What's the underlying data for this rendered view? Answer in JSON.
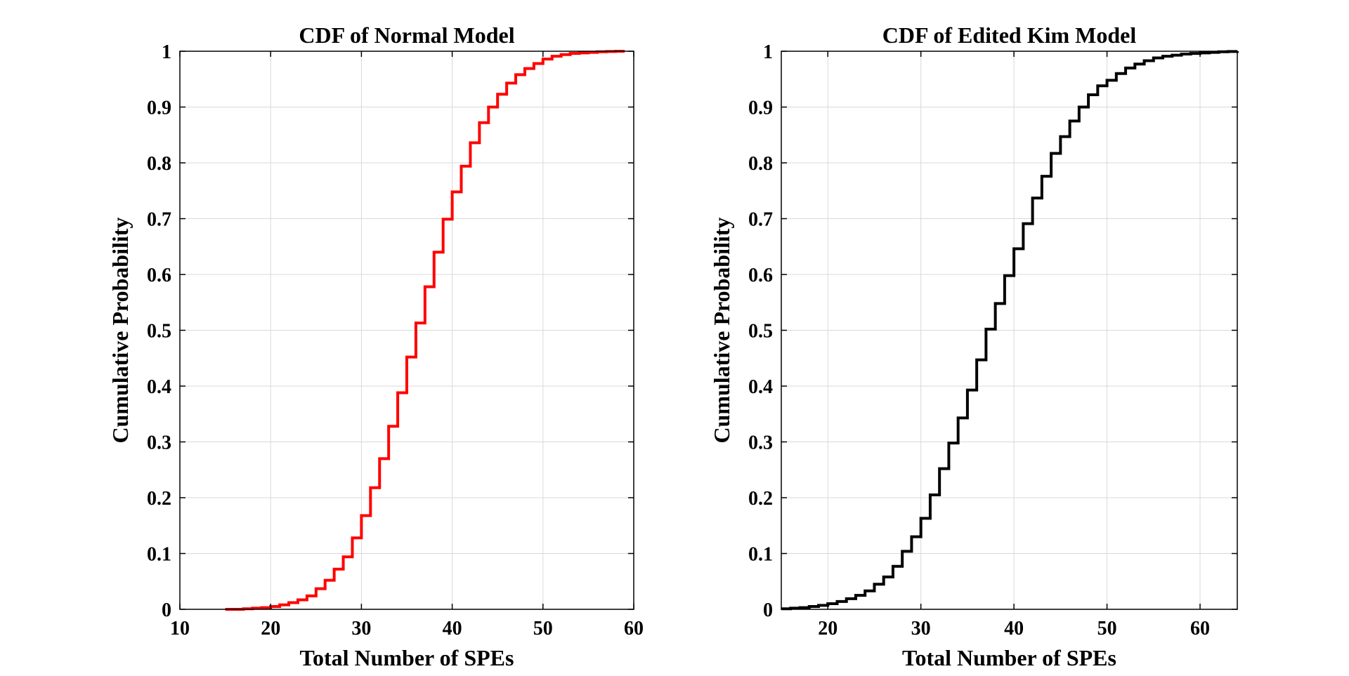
{
  "chart_data": [
    {
      "type": "line",
      "title": "CDF of Normal Model",
      "xlabel": "Total Number of SPEs",
      "ylabel": "Cumulative Probability",
      "xlim": [
        10,
        60
      ],
      "ylim": [
        0,
        1
      ],
      "xticks": [
        "10",
        "20",
        "30",
        "40",
        "50",
        "60"
      ],
      "yticks": [
        "0",
        "0.1",
        "0.2",
        "0.3",
        "0.4",
        "0.5",
        "0.6",
        "0.7",
        "0.8",
        "0.9",
        "1"
      ],
      "grid": true,
      "color": "#ff0000",
      "style": "stairs",
      "series": [
        {
          "x": [
            15,
            16,
            17,
            18,
            19,
            20,
            21,
            22,
            23,
            24,
            25,
            26,
            27,
            28,
            29,
            30,
            31,
            32,
            33,
            34,
            35,
            36,
            37,
            38,
            39,
            40,
            41,
            42,
            43,
            44,
            45,
            46,
            47,
            48,
            49,
            50,
            51,
            52,
            53,
            54,
            55,
            56,
            57,
            58,
            59
          ],
          "values": [
            0,
            0,
            0.001,
            0.002,
            0.003,
            0.005,
            0.008,
            0.012,
            0.017,
            0.024,
            0.037,
            0.052,
            0.072,
            0.094,
            0.128,
            0.168,
            0.218,
            0.27,
            0.328,
            0.388,
            0.452,
            0.513,
            0.578,
            0.64,
            0.699,
            0.748,
            0.794,
            0.836,
            0.872,
            0.9,
            0.923,
            0.943,
            0.958,
            0.969,
            0.978,
            0.986,
            0.991,
            0.994,
            0.996,
            0.997,
            0.998,
            0.999,
            0.9995,
            1,
            1
          ]
        }
      ]
    },
    {
      "type": "line",
      "title": "CDF of Edited Kim Model",
      "xlabel": "Total Number of SPEs",
      "ylabel": "Cumulative Probability",
      "xlim": [
        15,
        64
      ],
      "ylim": [
        0,
        1
      ],
      "xticks": [
        "20",
        "30",
        "40",
        "50",
        "60"
      ],
      "yticks": [
        "0",
        "0.1",
        "0.2",
        "0.3",
        "0.4",
        "0.5",
        "0.6",
        "0.7",
        "0.8",
        "0.9",
        "1"
      ],
      "grid": true,
      "color": "#000000",
      "style": "stairs",
      "series": [
        {
          "x": [
            15,
            16,
            17,
            18,
            19,
            20,
            21,
            22,
            23,
            24,
            25,
            26,
            27,
            28,
            29,
            30,
            31,
            32,
            33,
            34,
            35,
            36,
            37,
            38,
            39,
            40,
            41,
            42,
            43,
            44,
            45,
            46,
            47,
            48,
            49,
            50,
            51,
            52,
            53,
            54,
            55,
            56,
            57,
            58,
            59,
            60,
            61,
            62,
            63,
            64
          ],
          "values": [
            0.001,
            0.002,
            0.003,
            0.005,
            0.007,
            0.01,
            0.014,
            0.019,
            0.025,
            0.033,
            0.045,
            0.058,
            0.077,
            0.104,
            0.13,
            0.163,
            0.205,
            0.252,
            0.298,
            0.343,
            0.393,
            0.447,
            0.502,
            0.548,
            0.598,
            0.646,
            0.691,
            0.737,
            0.776,
            0.817,
            0.847,
            0.875,
            0.9,
            0.922,
            0.938,
            0.948,
            0.96,
            0.97,
            0.977,
            0.983,
            0.988,
            0.991,
            0.993,
            0.995,
            0.996,
            0.997,
            0.998,
            0.999,
            0.9995,
            1
          ]
        }
      ]
    }
  ]
}
